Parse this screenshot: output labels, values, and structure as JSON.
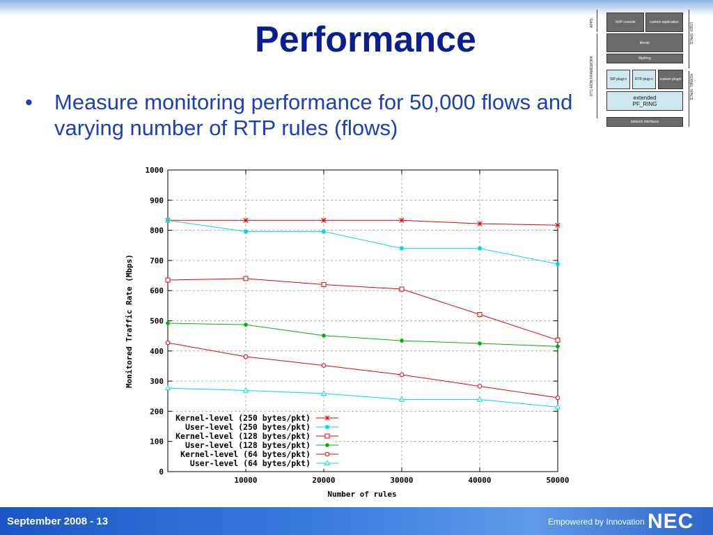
{
  "slide": {
    "title": "Performance",
    "bullet": "Measure monitoring performance for 50,000 flows and varying number of RTP rules (flows)",
    "bullet_symbol": "•"
  },
  "architecture": {
    "voip_console": "VoIP console",
    "custom_application": "custom application",
    "libvoip": "libvoip",
    "libpfring": "libpfring",
    "sip_plugin": "SIP plugi n",
    "rtp_plugin": "RTP plugi n",
    "custom_plugin": "custom plugin",
    "extended_pf_ring_line1": "extended",
    "extended_pf_ring_line2": "PF_RING",
    "network_interfaces": "network interfaces",
    "label_apps": "APPS",
    "label_framework": "RTC-MON FRAMEWORK",
    "label_user_space": "USER SPACE",
    "label_kernel_space": "KERNEL SPACE"
  },
  "chart_data": {
    "type": "line",
    "xlabel": "Number of rules",
    "ylabel": "Monitored Traffic Rate (Mbps)",
    "xlim": [
      1,
      50000
    ],
    "ylim": [
      0,
      1000
    ],
    "x_ticks": [
      10000,
      20000,
      30000,
      40000,
      50000
    ],
    "y_ticks": [
      0,
      100,
      200,
      300,
      400,
      500,
      600,
      700,
      800,
      900,
      1000
    ],
    "grid": true,
    "legend_position": "bottom-right",
    "x": [
      1,
      10000,
      20000,
      30000,
      40000,
      50000
    ],
    "series": [
      {
        "name": "Kernel-level (250 bytes/pkt)",
        "color": "#e00000",
        "marker": "star",
        "values": [
          833,
          833,
          833,
          833,
          822,
          817
        ]
      },
      {
        "name": "User-level (250 bytes/pkt)",
        "color": "#00d8e8",
        "marker": "filled-square",
        "values": [
          833,
          796,
          796,
          740,
          740,
          688
        ]
      },
      {
        "name": "Kernel-level (128 bytes/pkt)",
        "color": "#e00000",
        "marker": "open-square",
        "values": [
          635,
          640,
          620,
          605,
          521,
          436
        ]
      },
      {
        "name": "User-level (128 bytes/pkt)",
        "color": "#00b000",
        "marker": "filled-circle",
        "values": [
          492,
          487,
          451,
          434,
          425,
          415
        ]
      },
      {
        "name": "Kernel-level (64 bytes/pkt)",
        "color": "#e00000",
        "marker": "open-circle",
        "values": [
          427,
          381,
          352,
          321,
          283,
          245
        ]
      },
      {
        "name": "User-level (64 bytes/pkt)",
        "color": "#00d8e8",
        "marker": "open-triangle",
        "values": [
          277,
          269,
          259,
          239,
          239,
          214
        ]
      }
    ]
  },
  "footer": {
    "left_text": "September 2008 - 13",
    "tagline": "Empowered by Innovation",
    "logo_text": "NEC"
  }
}
